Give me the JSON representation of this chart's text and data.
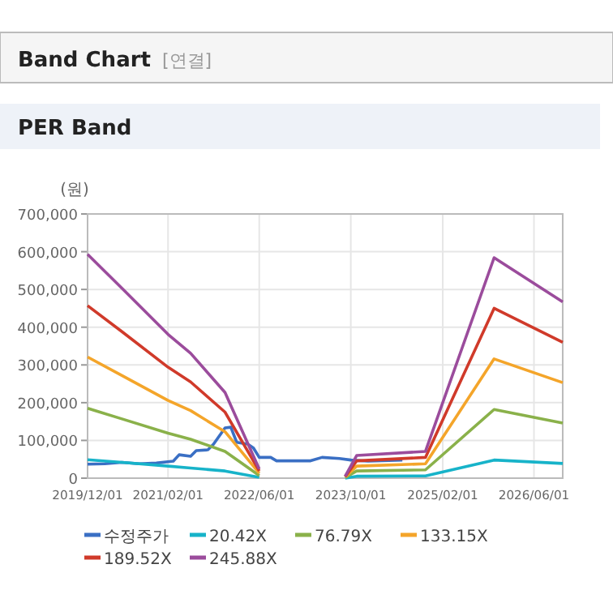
{
  "chart_data": {
    "type": "line",
    "title": "Band Chart",
    "subtitle": "[연결]",
    "annotations": [
      "PER Band"
    ],
    "ylabel": "(원)",
    "xlim": [
      "2019-12-01",
      "2026-11-01"
    ],
    "xticks": [
      {
        "value": "2019-12-01",
        "label": "2019/12/01"
      },
      {
        "value": "2021-02-01",
        "label": "2021/02/01"
      },
      {
        "value": "2022-06-01",
        "label": "2022/06/01"
      },
      {
        "value": "2023-10-01",
        "label": "2023/10/01"
      },
      {
        "value": "2025-02-01",
        "label": "2025/02/01"
      },
      {
        "value": "2026-06-01",
        "label": "2026/06/01"
      }
    ],
    "ylim": [
      0,
      700000
    ],
    "yticks": [
      {
        "value": 0,
        "label": "0"
      },
      {
        "value": 100000,
        "label": "100,000"
      },
      {
        "value": 200000,
        "label": "200,000"
      },
      {
        "value": 300000,
        "label": "300,000"
      },
      {
        "value": 400000,
        "label": "400,000"
      },
      {
        "value": 500000,
        "label": "500,000"
      },
      {
        "value": 600000,
        "label": "600,000"
      },
      {
        "value": 700000,
        "label": "700,000"
      }
    ],
    "grid": true,
    "legend": "bottom",
    "marker": "none",
    "line_style": "solid",
    "series": [
      {
        "name": "수정주가",
        "color": "#3a6fc4",
        "x": [
          "2019-12-01",
          "2020-03-01",
          "2020-06-01",
          "2020-09-01",
          "2020-12-01",
          "2021-03-01",
          "2021-04-01",
          "2021-06-01",
          "2021-07-01",
          "2021-09-01",
          "2021-10-01",
          "2021-12-01",
          "2022-01-01",
          "2022-02-01",
          "2022-04-01",
          "2022-05-01",
          "2022-06-01",
          "2022-08-01",
          "2022-09-01",
          "2023-03-01",
          "2023-05-01",
          "2023-08-01",
          "2023-10-01",
          "2024-01-01",
          "2024-07-01"
        ],
        "values": [
          37000,
          38000,
          42000,
          38000,
          40000,
          45000,
          62000,
          58000,
          73000,
          75000,
          90000,
          133000,
          135000,
          95000,
          90000,
          80000,
          55000,
          55000,
          46000,
          46000,
          55000,
          52000,
          48000,
          45000,
          48000
        ]
      },
      {
        "name": "20.42X",
        "color": "#17b3c9",
        "x": [
          "2019-12-01",
          "2020-06-01",
          "2021-02-01",
          "2021-06-01",
          "2021-12-01",
          "2022-06-01",
          "2023-01-01",
          "2023-09-01",
          "2023-11-01",
          "2024-11-01",
          "2025-11-01",
          "2026-11-01"
        ],
        "values": [
          49000,
          42000,
          32000,
          27000,
          19000,
          2000,
          null,
          0,
          5000,
          6000,
          48000,
          39000
        ]
      },
      {
        "name": "76.79X",
        "color": "#8ab14a",
        "x": [
          "2019-12-01",
          "2020-06-01",
          "2021-02-01",
          "2021-06-01",
          "2021-12-01",
          "2022-06-01",
          "2023-01-01",
          "2023-09-01",
          "2023-11-01",
          "2024-11-01",
          "2025-11-01",
          "2026-11-01"
        ],
        "values": [
          185000,
          157000,
          119000,
          103000,
          71000,
          7000,
          null,
          2000,
          19000,
          22000,
          182000,
          146000
        ]
      },
      {
        "name": "133.15X",
        "color": "#f4a52a",
        "x": [
          "2019-12-01",
          "2020-06-01",
          "2021-02-01",
          "2021-06-01",
          "2021-12-01",
          "2022-06-01",
          "2023-01-01",
          "2023-09-01",
          "2023-11-01",
          "2024-11-01",
          "2025-11-01",
          "2026-11-01"
        ],
        "values": [
          321000,
          272000,
          206000,
          179000,
          123000,
          13000,
          null,
          3000,
          32000,
          38000,
          316000,
          253000
        ]
      },
      {
        "name": "189.52X",
        "color": "#d03a2a",
        "x": [
          "2019-12-01",
          "2020-06-01",
          "2021-02-01",
          "2021-06-01",
          "2021-12-01",
          "2022-06-01",
          "2023-01-01",
          "2023-09-01",
          "2023-11-01",
          "2024-11-01",
          "2025-11-01",
          "2026-11-01"
        ],
        "values": [
          457000,
          388000,
          294000,
          255000,
          175000,
          19000,
          null,
          4000,
          46000,
          55000,
          450000,
          360000
        ]
      },
      {
        "name": "245.88X",
        "color": "#9b4c9c",
        "x": [
          "2019-12-01",
          "2020-06-01",
          "2021-02-01",
          "2021-06-01",
          "2021-12-01",
          "2022-06-01",
          "2023-01-01",
          "2023-09-01",
          "2023-11-01",
          "2024-11-01",
          "2025-11-01",
          "2026-11-01"
        ],
        "values": [
          593000,
          503000,
          381000,
          331000,
          227000,
          24000,
          null,
          5000,
          60000,
          71000,
          584000,
          467000
        ]
      }
    ]
  }
}
